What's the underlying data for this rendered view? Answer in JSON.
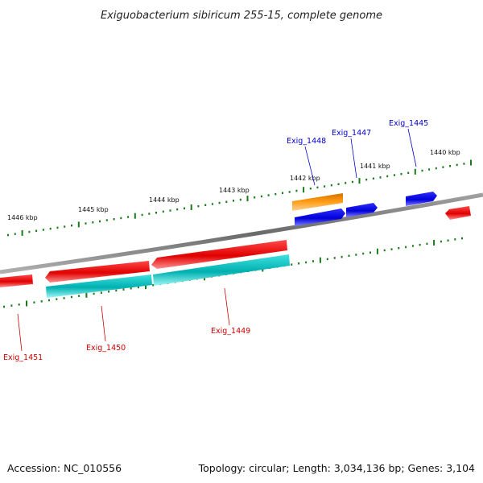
{
  "title": "Exiguobacterium sibiricum 255-15, complete genome",
  "footer": {
    "accession": "Accession: NC_010556",
    "summary": "Topology: circular; Length: 3,034,136 bp; Genes: 3,104"
  },
  "colors": {
    "forward_gene": "#0a0ae6",
    "reverse_gene": "#e60a0a",
    "reverse_cds": "#10c4c4",
    "forward_cds_feature": "#f5900a",
    "forward_label": "#0000cc",
    "reverse_label": "#cc0000",
    "tick": "#1a7a1a",
    "backbone": "#808080"
  },
  "kbp_markers": [
    "1446 kbp",
    "1445 kbp",
    "1444 kbp",
    "1443 kbp",
    "1442 kbp",
    "1441 kbp",
    "1440 kbp"
  ],
  "forward_labels": [
    "Exig_1448",
    "Exig_1447",
    "Exig_1445"
  ],
  "reverse_labels": [
    "Exig_1451",
    "Exig_1450",
    "Exig_1449"
  ]
}
